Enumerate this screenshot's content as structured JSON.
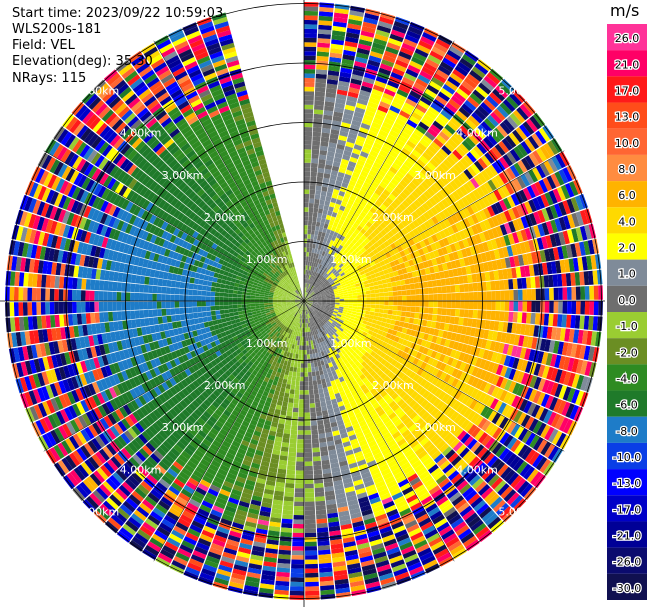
{
  "header": {
    "start_time": "Start time: 2023/09/22 10:59:03",
    "instrument": "WLS200s-181",
    "field": "Field: VEL",
    "elevation": "Elevation(deg): 35.30",
    "nrays": "NRays: 115"
  },
  "colorbar": {
    "unit": "m/s",
    "bins": [
      {
        "label": "26.0",
        "color": "#ff3399"
      },
      {
        "label": "21.0",
        "color": "#ff0066"
      },
      {
        "label": "17.0",
        "color": "#ff1a1a"
      },
      {
        "label": "13.0",
        "color": "#ff4d1a"
      },
      {
        "label": "10.0",
        "color": "#ff6633"
      },
      {
        "label": "8.0",
        "color": "#ff8c40"
      },
      {
        "label": "6.0",
        "color": "#ffb300"
      },
      {
        "label": "4.0",
        "color": "#ffd900"
      },
      {
        "label": "2.0",
        "color": "#ffff00"
      },
      {
        "label": "1.0",
        "color": "#7f8b99"
      },
      {
        "label": "0.0",
        "color": "#6e6e6e"
      },
      {
        "label": "-1.0",
        "color": "#9acd32"
      },
      {
        "label": "-2.0",
        "color": "#6b8e23"
      },
      {
        "label": "-4.0",
        "color": "#2e8b22"
      },
      {
        "label": "-6.0",
        "color": "#1f7a2a"
      },
      {
        "label": "-8.0",
        "color": "#1e7cc8"
      },
      {
        "label": "-10.0",
        "color": "#0a3ee6"
      },
      {
        "label": "-13.0",
        "color": "#0000ff"
      },
      {
        "label": "-17.0",
        "color": "#0000c8"
      },
      {
        "label": "-21.0",
        "color": "#000096"
      },
      {
        "label": "-26.0",
        "color": "#0b0b6e"
      },
      {
        "label": "-30.0",
        "color": "#101050"
      }
    ]
  },
  "range_rings": [
    {
      "label": "1.00km"
    },
    {
      "label": "2.00km"
    },
    {
      "label": "3.00km"
    },
    {
      "label": "4.00km"
    },
    {
      "label": "5.00km"
    }
  ],
  "chart_data": {
    "type": "ppi_radar",
    "field": "VEL",
    "units": "m/s",
    "elevation_deg": 35.3,
    "n_rays": 115,
    "range_rings_km": [
      1,
      2,
      3,
      4,
      5
    ],
    "missing_sector_deg": [
      344,
      359
    ],
    "center_velocity_ms": 0.0,
    "notes_gradient": [
      {
        "azimuth_deg": 90,
        "range_km": 2.0,
        "velocity_ms": 6.0
      },
      {
        "azimuth_deg": 270,
        "range_km": 2.0,
        "velocity_ms": -4.0
      },
      {
        "azimuth_deg": 135,
        "range_km": 1.2,
        "velocity_ms": 2.0
      },
      {
        "azimuth_deg": 315,
        "range_km": 1.2,
        "velocity_ms": -2.0
      }
    ]
  }
}
